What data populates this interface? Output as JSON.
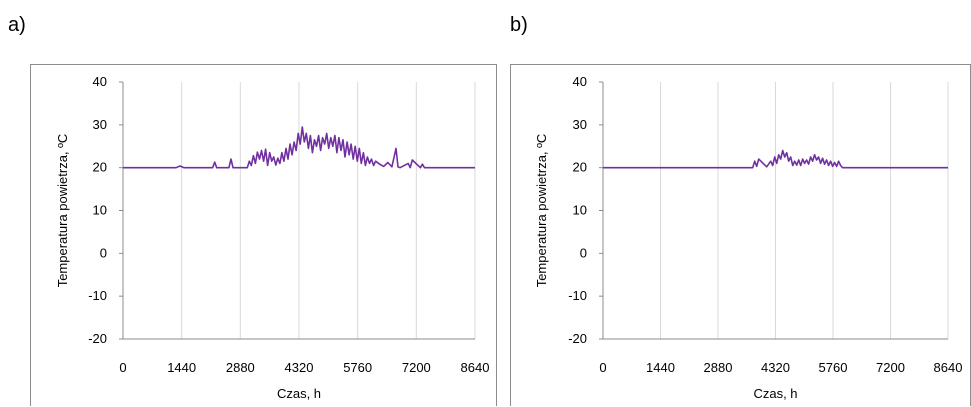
{
  "chart_data": [
    {
      "panel": "a)",
      "type": "line",
      "xlabel": "Czas, h",
      "ylabel": "Temperatura powietrza, ºC",
      "xlim": [
        0,
        8640
      ],
      "ylim": [
        -20,
        40
      ],
      "xticks": [
        0,
        1440,
        2880,
        4320,
        5760,
        7200,
        8640
      ],
      "yticks": [
        -20,
        -10,
        0,
        10,
        20,
        30,
        40
      ],
      "grid": "vertical",
      "line_color": "#7030a0",
      "series": [
        {
          "baseline": 20,
          "x": [
            0,
            1300,
            1400,
            1500,
            2200,
            2250,
            2300,
            2600,
            2650,
            2700,
            3050,
            3100,
            3150,
            3200,
            3250,
            3300,
            3350,
            3400,
            3450,
            3500,
            3550,
            3600,
            3650,
            3700,
            3750,
            3800,
            3850,
            3900,
            3950,
            4000,
            4050,
            4100,
            4150,
            4200,
            4250,
            4300,
            4350,
            4400,
            4450,
            4500,
            4550,
            4600,
            4650,
            4700,
            4750,
            4800,
            4850,
            4900,
            4950,
            5000,
            5050,
            5100,
            5150,
            5200,
            5250,
            5300,
            5350,
            5400,
            5450,
            5500,
            5550,
            5600,
            5650,
            5700,
            5750,
            5800,
            5850,
            5900,
            5950,
            6000,
            6050,
            6100,
            6150,
            6200,
            6300,
            6400,
            6500,
            6600,
            6700,
            6750,
            6800,
            7000,
            7050,
            7100,
            7300,
            7350,
            7400,
            8640
          ],
          "y": [
            20,
            20,
            20.4,
            20,
            20,
            21.3,
            20,
            20,
            22,
            20,
            20,
            21.5,
            20.5,
            22.8,
            21,
            23.6,
            22,
            24,
            21.5,
            24.3,
            20.5,
            23.5,
            21.5,
            22.5,
            20.6,
            22.2,
            21,
            23.5,
            21.5,
            24.5,
            22,
            25.5,
            23,
            26,
            24,
            28,
            25.5,
            29.5,
            26,
            28,
            24.5,
            27.5,
            23.5,
            26.5,
            25,
            27.5,
            24,
            27,
            25.5,
            28,
            24.5,
            27,
            25,
            27.5,
            23.5,
            27,
            24,
            26.5,
            22.5,
            26,
            23,
            25.5,
            22,
            25,
            21.5,
            24.5,
            21,
            23.5,
            20.5,
            22.5,
            21,
            22,
            20.5,
            21.5,
            20.8,
            20.3,
            21.2,
            20.2,
            24.5,
            20.2,
            20,
            21,
            20,
            21.8,
            20,
            20.8,
            20,
            20
          ]
        }
      ]
    },
    {
      "panel": "b)",
      "type": "line",
      "xlabel": "Czas, h",
      "ylabel": "Temperatura powietrza, ºC",
      "xlim": [
        0,
        8640
      ],
      "ylim": [
        -20,
        40
      ],
      "xticks": [
        0,
        1440,
        2880,
        4320,
        5760,
        7200,
        8640
      ],
      "yticks": [
        -20,
        -10,
        0,
        10,
        20,
        30,
        40
      ],
      "grid": "vertical",
      "line_color": "#7030a0",
      "series": [
        {
          "baseline": 20,
          "x": [
            0,
            3750,
            3800,
            3850,
            3900,
            4100,
            4200,
            4250,
            4300,
            4350,
            4400,
            4450,
            4500,
            4550,
            4600,
            4650,
            4700,
            4750,
            4800,
            4850,
            4900,
            4950,
            5000,
            5050,
            5100,
            5150,
            5200,
            5250,
            5300,
            5350,
            5400,
            5450,
            5500,
            5550,
            5600,
            5650,
            5700,
            5750,
            5800,
            5850,
            5900,
            5950,
            6000,
            8640
          ],
          "y": [
            20,
            20,
            21.5,
            20.3,
            22,
            20.2,
            21.5,
            20.5,
            22.5,
            21,
            23,
            22,
            24,
            22.5,
            23.5,
            21.5,
            22.5,
            20.5,
            21.5,
            20.6,
            21.8,
            20.5,
            22,
            21,
            21.8,
            20.8,
            22.5,
            21.5,
            23,
            21.8,
            22.5,
            21,
            22.2,
            20.8,
            21.8,
            20.5,
            21.5,
            20.3,
            21.2,
            20.3,
            21.5,
            20.5,
            20,
            20
          ]
        }
      ]
    }
  ]
}
